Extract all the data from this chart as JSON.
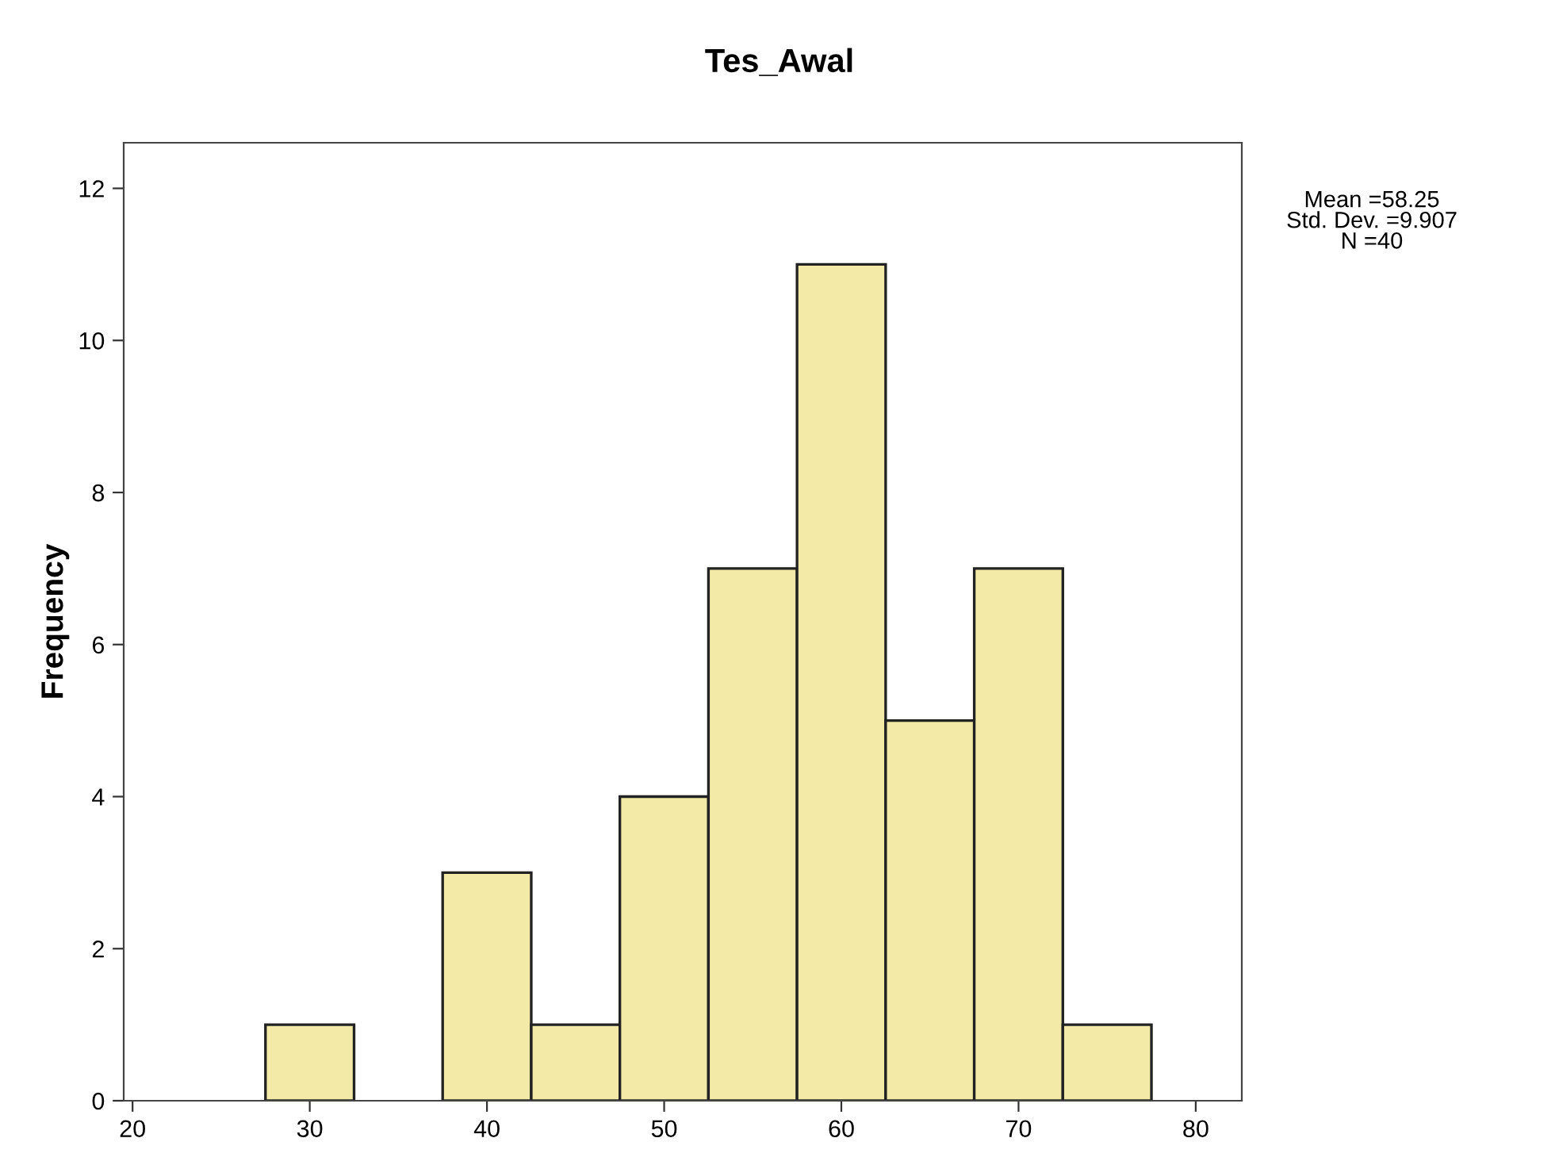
{
  "chart_data": {
    "type": "histogram",
    "title": "Tes_Awal",
    "ylabel": "Frequency",
    "bins": [
      27.5,
      32.5,
      37.5,
      42.5,
      47.5,
      52.5,
      57.5,
      62.5,
      67.5,
      72.5,
      77.5
    ],
    "values": [
      1,
      0,
      3,
      1,
      4,
      7,
      11,
      5,
      7,
      1
    ],
    "color": "#f2eaa6",
    "xlim": [
      19.5,
      82.6
    ],
    "ylim": [
      0,
      12.6
    ],
    "xticks": [
      20,
      30,
      40,
      50,
      60,
      70,
      80
    ],
    "yticks": [
      0,
      2,
      4,
      6,
      8,
      10,
      12
    ],
    "grid": false,
    "annotations": [
      "Mean =58.25\nStd. Dev. =9.907\nN =40"
    ]
  }
}
